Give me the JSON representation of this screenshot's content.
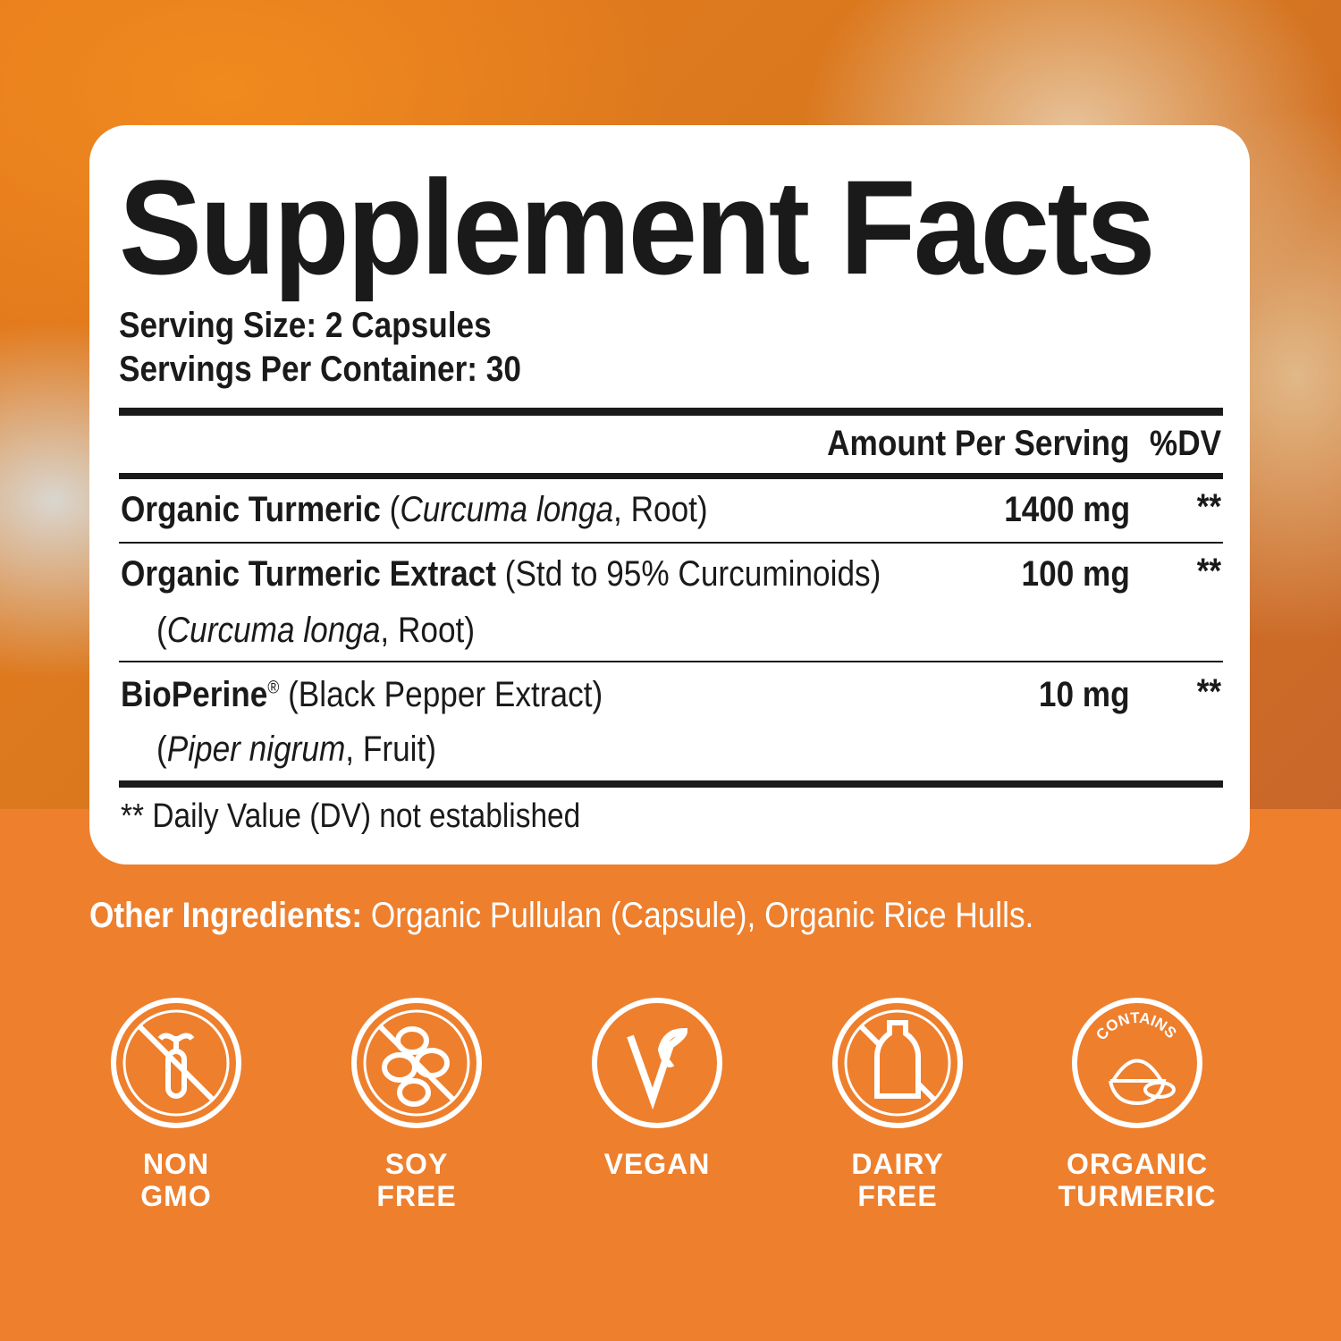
{
  "title": "Supplement Facts",
  "serving_size": "Serving Size: 2 Capsules",
  "servings_per_container": "Servings Per Container: 30",
  "header": {
    "amount": "Amount Per Serving",
    "dv": "%DV"
  },
  "rows": [
    {
      "name": "Organic Turmeric",
      "detail_open": " (",
      "latin": "Curcuma longa",
      "detail_close": ", Root)",
      "amount": "1400 mg",
      "dv": "**"
    },
    {
      "name": "Organic Turmeric Extract",
      "detail": " (Std to 95% Curcuminoids)",
      "sub_open": "(",
      "latin": "Curcuma longa",
      "sub_close": ", Root)",
      "amount": "100 mg",
      "dv": "**"
    },
    {
      "name": "BioPerine",
      "reg": "®",
      "detail": " (Black Pepper Extract)",
      "sub_open": "(",
      "latin": "Piper nigrum",
      "sub_close": ", Fruit)",
      "amount": "10 mg",
      "dv": "**"
    }
  ],
  "footnote": "** Daily Value (DV) not established",
  "other_ingredients": {
    "label": "Other Ingredients:",
    "value": " Organic Pullulan (Capsule), Organic Rice Hulls."
  },
  "badges": [
    {
      "icon": "non-gmo-icon",
      "line1": "NON",
      "line2": "GMO"
    },
    {
      "icon": "soy-free-icon",
      "line1": "SOY",
      "line2": "FREE"
    },
    {
      "icon": "vegan-icon",
      "line1": "VEGAN",
      "line2": ""
    },
    {
      "icon": "dairy-free-icon",
      "line1": "DAIRY",
      "line2": "FREE"
    },
    {
      "icon": "organic-turmeric-icon",
      "line1": "ORGANIC",
      "line2": "TURMERIC",
      "ring_text": "CONTAINS"
    }
  ],
  "colors": {
    "orange": "#ee7f2d",
    "text": "#1a1a1a",
    "card": "#ffffff"
  }
}
